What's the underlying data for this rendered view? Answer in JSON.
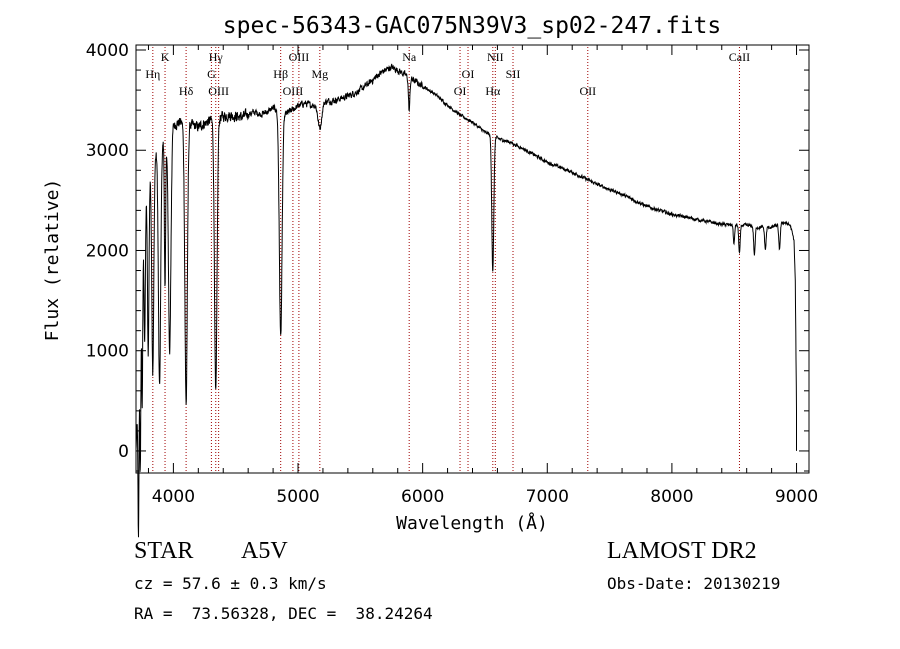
{
  "chart_data": {
    "type": "line",
    "title": "spec-56343-GAC075N39V3_sp02-247.fits",
    "xlabel": "Wavelength (Å)",
    "ylabel": "Flux (relative)",
    "xlim": [
      3700,
      9100
    ],
    "ylim": [
      -220,
      4050
    ],
    "xticks": [
      4000,
      5000,
      6000,
      7000,
      8000,
      9000
    ],
    "yticks": [
      0,
      1000,
      2000,
      3000,
      4000
    ],
    "xtick_labels": [
      "4000",
      "5000",
      "6000",
      "7000",
      "8000",
      "9000"
    ],
    "ytick_labels": [
      "0",
      "1000",
      "2000",
      "3000",
      "4000"
    ],
    "line_color": "#000000",
    "marker_color": "#a00000",
    "continuum": [
      [
        3700,
        0
      ],
      [
        3720,
        600
      ],
      [
        3740,
        1400
      ],
      [
        3760,
        2100
      ],
      [
        3780,
        2500
      ],
      [
        3800,
        2700
      ],
      [
        3850,
        2950
      ],
      [
        3900,
        3050
      ],
      [
        3950,
        3150
      ],
      [
        4000,
        3250
      ],
      [
        4050,
        3280
      ],
      [
        4100,
        3270
      ],
      [
        4150,
        3250
      ],
      [
        4200,
        3230
      ],
      [
        4250,
        3270
      ],
      [
        4300,
        3300
      ],
      [
        4350,
        3320
      ],
      [
        4400,
        3340
      ],
      [
        4450,
        3350
      ],
      [
        4500,
        3340
      ],
      [
        4550,
        3330
      ],
      [
        4600,
        3360
      ],
      [
        4650,
        3380
      ],
      [
        4700,
        3360
      ],
      [
        4750,
        3380
      ],
      [
        4800,
        3420
      ],
      [
        4850,
        3400
      ],
      [
        4900,
        3360
      ],
      [
        4950,
        3400
      ],
      [
        5000,
        3440
      ],
      [
        5050,
        3470
      ],
      [
        5100,
        3450
      ],
      [
        5150,
        3460
      ],
      [
        5200,
        3480
      ],
      [
        5300,
        3500
      ],
      [
        5400,
        3540
      ],
      [
        5500,
        3600
      ],
      [
        5600,
        3700
      ],
      [
        5650,
        3760
      ],
      [
        5700,
        3800
      ],
      [
        5750,
        3830
      ],
      [
        5800,
        3800
      ],
      [
        5850,
        3760
      ],
      [
        5900,
        3720
      ],
      [
        5950,
        3680
      ],
      [
        6000,
        3640
      ],
      [
        6100,
        3560
      ],
      [
        6200,
        3450
      ],
      [
        6300,
        3350
      ],
      [
        6400,
        3280
      ],
      [
        6500,
        3180
      ],
      [
        6600,
        3120
      ],
      [
        6700,
        3080
      ],
      [
        6800,
        3020
      ],
      [
        6900,
        2950
      ],
      [
        7000,
        2880
      ],
      [
        7200,
        2780
      ],
      [
        7400,
        2660
      ],
      [
        7600,
        2560
      ],
      [
        7800,
        2440
      ],
      [
        8000,
        2360
      ],
      [
        8200,
        2310
      ],
      [
        8400,
        2260
      ],
      [
        8600,
        2250
      ],
      [
        8700,
        2230
      ],
      [
        8800,
        2230
      ],
      [
        8900,
        2280
      ],
      [
        8950,
        2250
      ],
      [
        8980,
        2100
      ],
      [
        8990,
        1700
      ],
      [
        9000,
        400
      ]
    ],
    "absorption_lines": [
      [
        3720,
        1500,
        4
      ],
      [
        3735,
        1400,
        4
      ],
      [
        3750,
        1300,
        4
      ],
      [
        3770,
        1200,
        5
      ],
      [
        3798,
        1700,
        6
      ],
      [
        3835,
        2100,
        8
      ],
      [
        3889,
        2400,
        9
      ],
      [
        3933,
        1500,
        5
      ],
      [
        3970,
        2200,
        10
      ],
      [
        4102,
        2800,
        10
      ],
      [
        4340,
        2750,
        10
      ],
      [
        4861,
        2250,
        11
      ],
      [
        5175,
        250,
        15
      ],
      [
        5892,
        330,
        6
      ],
      [
        6563,
        1350,
        8
      ],
      [
        8498,
        200,
        5
      ],
      [
        8542,
        280,
        6
      ],
      [
        8662,
        280,
        6
      ],
      [
        8750,
        220,
        6
      ],
      [
        8863,
        250,
        6
      ]
    ],
    "line_markers": [
      {
        "label": "Hη",
        "x": 3835,
        "row": 2
      },
      {
        "label": "K",
        "x": 3933,
        "row": 1
      },
      {
        "label": "Hδ",
        "x": 4102,
        "row": 3
      },
      {
        "label": "Hγ",
        "x": 4340,
        "row": 1
      },
      {
        "label": "G",
        "x": 4305,
        "row": 2
      },
      {
        "label": "OIII",
        "x": 4363,
        "row": 3
      },
      {
        "label": "OIII",
        "x": 5007,
        "row": 1
      },
      {
        "label": "Hβ",
        "x": 4861,
        "row": 2
      },
      {
        "label": "OIII",
        "x": 4959,
        "row": 3
      },
      {
        "label": "Mg",
        "x": 5175,
        "row": 2
      },
      {
        "label": "Na",
        "x": 5892,
        "row": 1
      },
      {
        "label": "OI",
        "x": 6364,
        "row": 2
      },
      {
        "label": "OI",
        "x": 6300,
        "row": 3
      },
      {
        "label": "NII",
        "x": 6583,
        "row": 1
      },
      {
        "label": "Hα",
        "x": 6563,
        "row": 3
      },
      {
        "label": "SII",
        "x": 6725,
        "row": 2
      },
      {
        "label": "OII",
        "x": 7325,
        "row": 3
      },
      {
        "label": "CaII",
        "x": 8542,
        "row": 1
      }
    ]
  },
  "info": {
    "object_type": "STAR",
    "subclass": "A5V",
    "survey": "LAMOST DR2",
    "redshift": "cz = 57.6 ± 0.3 km/s",
    "obs_date": "Obs-Date: 20130219",
    "coords": "RA =  73.56328, DEC =  38.24264"
  }
}
